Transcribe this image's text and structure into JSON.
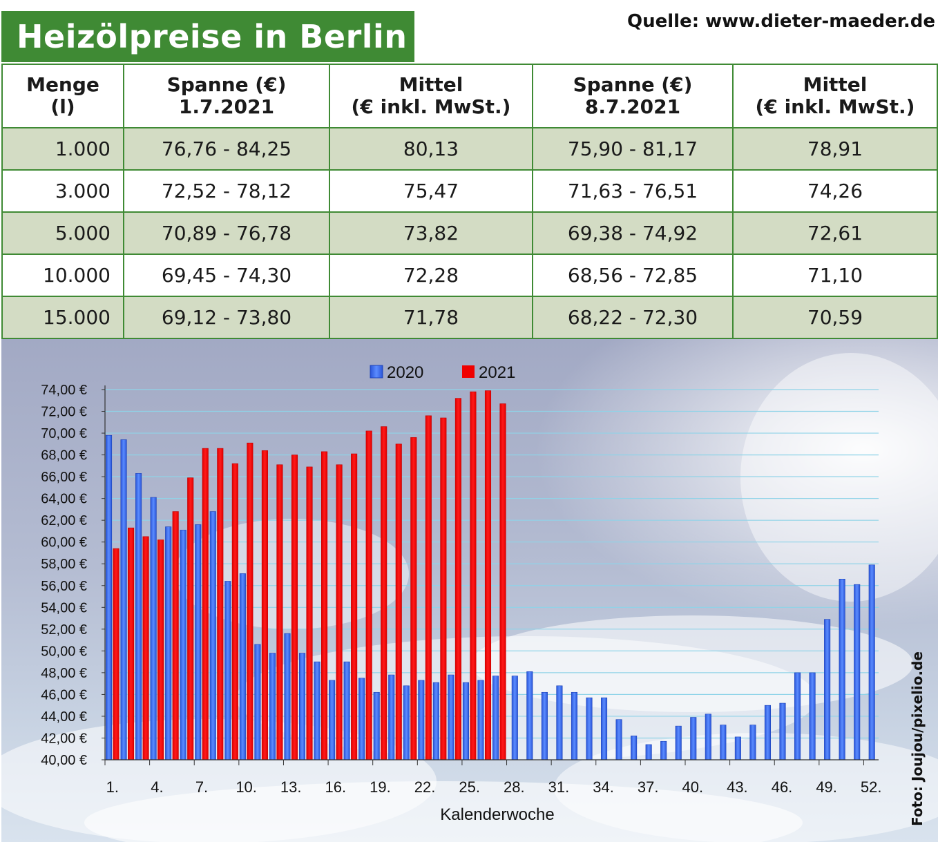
{
  "header": {
    "title": "Heizölpreise in Berlin",
    "source": "Quelle: www.dieter-maeder.de"
  },
  "table": {
    "columns": [
      [
        "Menge",
        "(l)"
      ],
      [
        "Spanne (€)",
        "1.7.2021"
      ],
      [
        "Mittel",
        "(€ inkl. MwSt.)"
      ],
      [
        "Spanne (€)",
        "8.7.2021"
      ],
      [
        "Mittel",
        "(€ inkl. MwSt.)"
      ]
    ],
    "rows": [
      [
        "1.000",
        "76,76 - 84,25",
        "80,13",
        "75,90 - 81,17",
        "78,91"
      ],
      [
        "3.000",
        "72,52 - 78,12",
        "75,47",
        "71,63 - 76,51",
        "74,26"
      ],
      [
        "5.000",
        "70,89 - 76,78",
        "73,82",
        "69,38 - 74,92",
        "72,61"
      ],
      [
        "10.000",
        "69,45 - 74,30",
        "72,28",
        "68,56 - 72,85",
        "71,10"
      ],
      [
        "15.000",
        "69,12 - 73,80",
        "71,78",
        "68,22 - 72,30",
        "70,59"
      ]
    ]
  },
  "photo_credit": "Foto: Joujou/pixelio.de",
  "colors": {
    "brand_green": "#3f8a34",
    "row_shade": "#d3dcc4",
    "series_2020": "#3b6df0",
    "series_2021": "#f00000"
  },
  "chart_data": {
    "type": "bar",
    "xlabel": "Kalenderwoche",
    "ylabel": "",
    "ylim": [
      40,
      74
    ],
    "yticks": [
      "40,00 €",
      "42,00 €",
      "44,00 €",
      "46,00 €",
      "48,00 €",
      "50,00 €",
      "52,00 €",
      "54,00 €",
      "56,00 €",
      "58,00 €",
      "60,00 €",
      "62,00 €",
      "64,00 €",
      "66,00 €",
      "68,00 €",
      "70,00 €",
      "72,00 €",
      "74,00 €"
    ],
    "xticks": [
      "1.",
      "4.",
      "7.",
      "10.",
      "13.",
      "16.",
      "19.",
      "22.",
      "25.",
      "28.",
      "31.",
      "34.",
      "37.",
      "40.",
      "43.",
      "46.",
      "49.",
      "52."
    ],
    "legend_position": "top-center",
    "grid": true,
    "x": [
      1,
      2,
      3,
      4,
      5,
      6,
      7,
      8,
      9,
      10,
      11,
      12,
      13,
      14,
      15,
      16,
      17,
      18,
      19,
      20,
      21,
      22,
      23,
      24,
      25,
      26,
      27,
      28,
      29,
      30,
      31,
      32,
      33,
      34,
      35,
      36,
      37,
      38,
      39,
      40,
      41,
      42,
      43,
      44,
      45,
      46,
      47,
      48,
      49,
      50,
      51,
      52
    ],
    "series": [
      {
        "name": "2020",
        "values": [
          69.8,
          69.4,
          66.3,
          64.1,
          61.4,
          61.1,
          61.6,
          62.8,
          56.4,
          57.1,
          50.6,
          49.8,
          51.6,
          49.8,
          49.0,
          47.3,
          49.0,
          47.5,
          46.2,
          47.8,
          46.8,
          47.3,
          47.1,
          47.8,
          47.1,
          47.3,
          47.7,
          47.7,
          48.1,
          46.2,
          46.8,
          46.2,
          45.7,
          45.7,
          43.7,
          42.2,
          41.4,
          41.7,
          43.1,
          43.9,
          44.2,
          43.2,
          42.1,
          43.2,
          45.0,
          45.2,
          48.0,
          48.0,
          52.9,
          56.6,
          56.1,
          57.9
        ]
      },
      {
        "name": "2021",
        "values": [
          59.4,
          61.3,
          60.5,
          60.2,
          62.8,
          65.9,
          68.6,
          68.6,
          67.2,
          69.1,
          68.4,
          67.1,
          68.0,
          66.9,
          68.3,
          67.1,
          68.1,
          70.2,
          70.6,
          69.0,
          69.6,
          71.6,
          71.4,
          73.2,
          73.8,
          73.9,
          72.7,
          null,
          null,
          null,
          null,
          null,
          null,
          null,
          null,
          null,
          null,
          null,
          null,
          null,
          null,
          null,
          null,
          null,
          null,
          null,
          null,
          null,
          null,
          null,
          null,
          null
        ]
      }
    ]
  }
}
